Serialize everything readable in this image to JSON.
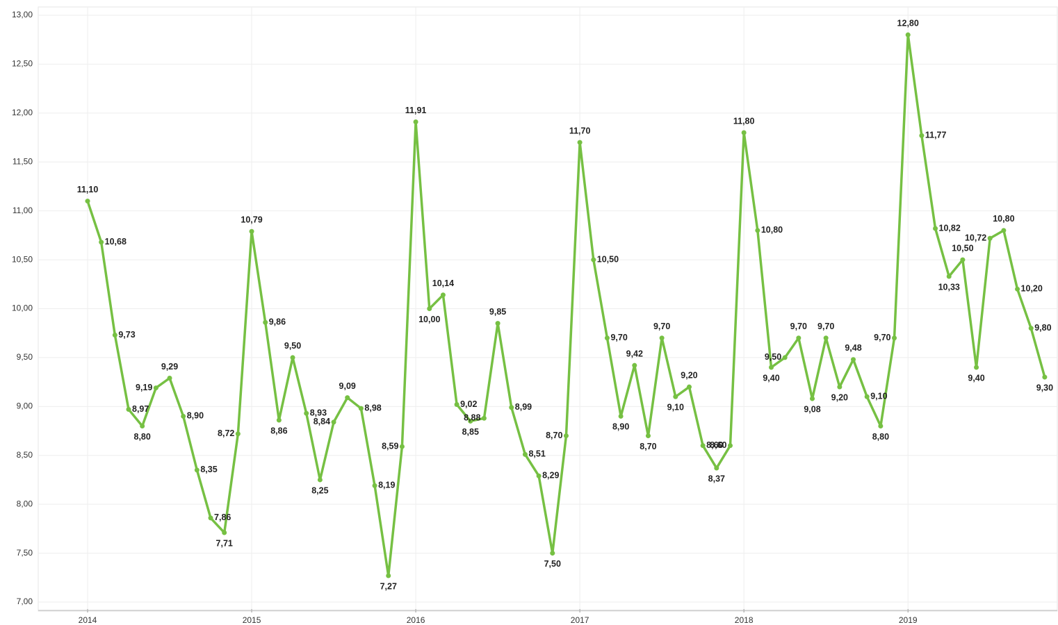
{
  "chart_data": {
    "type": "line",
    "categories": [
      "2014",
      null,
      null,
      null,
      null,
      null,
      null,
      null,
      null,
      null,
      null,
      null,
      "2015",
      null,
      null,
      null,
      null,
      null,
      null,
      null,
      null,
      null,
      null,
      null,
      "2016",
      null,
      null,
      null,
      null,
      null,
      null,
      null,
      null,
      null,
      null,
      null,
      "2017",
      null,
      null,
      null,
      null,
      null,
      null,
      null,
      null,
      null,
      null,
      null,
      "2018",
      null,
      null,
      null,
      null,
      null,
      null,
      null,
      null,
      null,
      null,
      null,
      "2019",
      null,
      null,
      null,
      null,
      null,
      null,
      null,
      null,
      null,
      null
    ],
    "values": [
      11.1,
      10.68,
      9.73,
      8.97,
      8.8,
      9.19,
      9.29,
      8.9,
      8.35,
      7.86,
      7.71,
      8.72,
      10.79,
      9.86,
      8.86,
      9.5,
      8.93,
      8.25,
      8.84,
      9.09,
      8.98,
      8.19,
      7.27,
      8.59,
      11.91,
      10.0,
      10.14,
      9.02,
      8.85,
      8.88,
      9.85,
      8.99,
      8.51,
      8.29,
      7.5,
      8.7,
      11.7,
      10.5,
      9.7,
      8.9,
      9.42,
      8.7,
      9.7,
      9.1,
      9.2,
      8.6,
      8.37,
      8.6,
      11.8,
      10.8,
      9.4,
      9.5,
      9.7,
      9.08,
      9.7,
      9.2,
      9.48,
      9.1,
      8.8,
      9.7,
      12.8,
      11.77,
      10.82,
      10.33,
      10.5,
      9.4,
      10.72,
      10.8,
      10.2,
      9.8,
      9.3
    ],
    "value_labels": [
      "11,10",
      "10,68",
      "9,73",
      "8,97",
      "8,80",
      "9,19",
      "9,29",
      "8,90",
      "8,35",
      "7,86",
      "7,71",
      "8,72",
      "10,79",
      "9,86",
      "8,86",
      "9,50",
      "8,93",
      "8,25",
      "8,84",
      "9,09",
      "8,98",
      "8,19",
      "7,27",
      "8,59",
      "11,91",
      "10,00",
      "10,14",
      "9,02",
      "8,85",
      "8,88",
      "9,85",
      "8,99",
      "8,51",
      "8,29",
      "7,50",
      "8,70",
      "11,70",
      "10,50",
      "9,70",
      "8,90",
      "9,42",
      "8,70",
      "9,70",
      "9,10",
      "9,20",
      "8,60",
      "8,37",
      "8,60",
      "11,80",
      "10,80",
      "9,40",
      "9,50",
      "9,70",
      "9,08",
      "9,70",
      "9,20",
      "9,48",
      "9,10",
      "8,80",
      "9,70",
      "12,80",
      "11,77",
      "10,82",
      "10,33",
      "10,50",
      "9,40",
      "10,72",
      "10,80",
      "10,20",
      "9,80",
      "9,30"
    ],
    "color": "#76c043",
    "ylim": [
      7,
      13
    ],
    "yticks": [
      {
        "value": 7,
        "label": "7,00"
      },
      {
        "value": 7.5,
        "label": "7,50"
      },
      {
        "value": 8,
        "label": "8,00"
      },
      {
        "value": 8.5,
        "label": "8,50"
      },
      {
        "value": 9,
        "label": "9,00"
      },
      {
        "value": 9.5,
        "label": "9,50"
      },
      {
        "value": 10,
        "label": "10,00"
      },
      {
        "value": 10.5,
        "label": "10,50"
      },
      {
        "value": 11,
        "label": "11,00"
      },
      {
        "value": 11.5,
        "label": "11,50"
      },
      {
        "value": 12,
        "label": "12,00"
      },
      {
        "value": 12.5,
        "label": "12,50"
      },
      {
        "value": 13,
        "label": "13,00"
      }
    ],
    "grid": true
  }
}
